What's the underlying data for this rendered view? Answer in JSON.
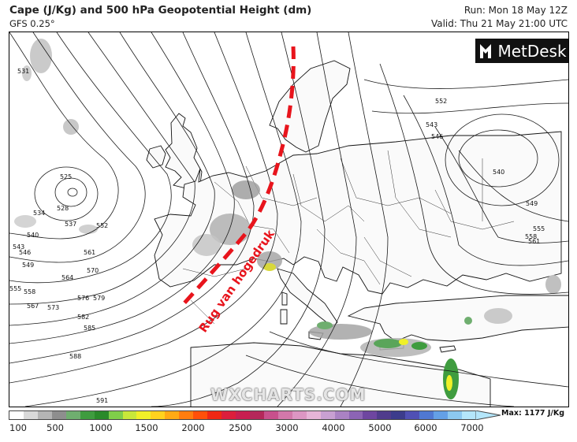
{
  "header": {
    "title": "Cape (J/Kg) and 500 hPa Geopotential Height (dm)",
    "model": "GFS 0.25°",
    "run": "Run: Mon 18 May 12Z",
    "valid": "Valid: Thu 21 May 21:00 UTC"
  },
  "logo": {
    "text": "MetDesk",
    "icon": "metdesk-logo-icon"
  },
  "watermark": "WXCHARTS.COM",
  "annotation": {
    "text": "Rug van hogedruk",
    "color": "#e8141c",
    "style": "dashed ridge axis"
  },
  "contours": {
    "unit": "dm",
    "labels": [
      "531",
      "528",
      "525",
      "534",
      "537",
      "540",
      "543",
      "546",
      "549",
      "552",
      "555",
      "558",
      "561",
      "564",
      "567",
      "570",
      "573",
      "576",
      "579",
      "582",
      "585",
      "588",
      "591",
      "543",
      "540",
      "546",
      "549",
      "552",
      "555",
      "558",
      "561"
    ],
    "low_centre": "525"
  },
  "colorbar": {
    "ticks": [
      "100",
      "500",
      "1000",
      "1500",
      "2000",
      "2500",
      "3000",
      "4000",
      "5000",
      "6000",
      "7000"
    ],
    "max_label": "Max: 1177 J/Kg",
    "colors": [
      "#ffffff",
      "#d9d9d9",
      "#b4b4b4",
      "#8e8e8e",
      "#6fae6f",
      "#3f9c3f",
      "#2a8a2a",
      "#7fce4a",
      "#c8e83a",
      "#f0f028",
      "#ffd21e",
      "#ffaa14",
      "#ff7d0f",
      "#ff500a",
      "#f02814",
      "#dc1e3c",
      "#c81e50",
      "#b4285a",
      "#c8508c",
      "#d278aa",
      "#dc96c3",
      "#e6b4d7",
      "#c8a0d2",
      "#aa82c3",
      "#8c64b4",
      "#6e46a0",
      "#503c8c",
      "#3c3c8c",
      "#5050b4",
      "#5078d2",
      "#64a0e6",
      "#8cc8f0",
      "#b4e6fa"
    ]
  }
}
